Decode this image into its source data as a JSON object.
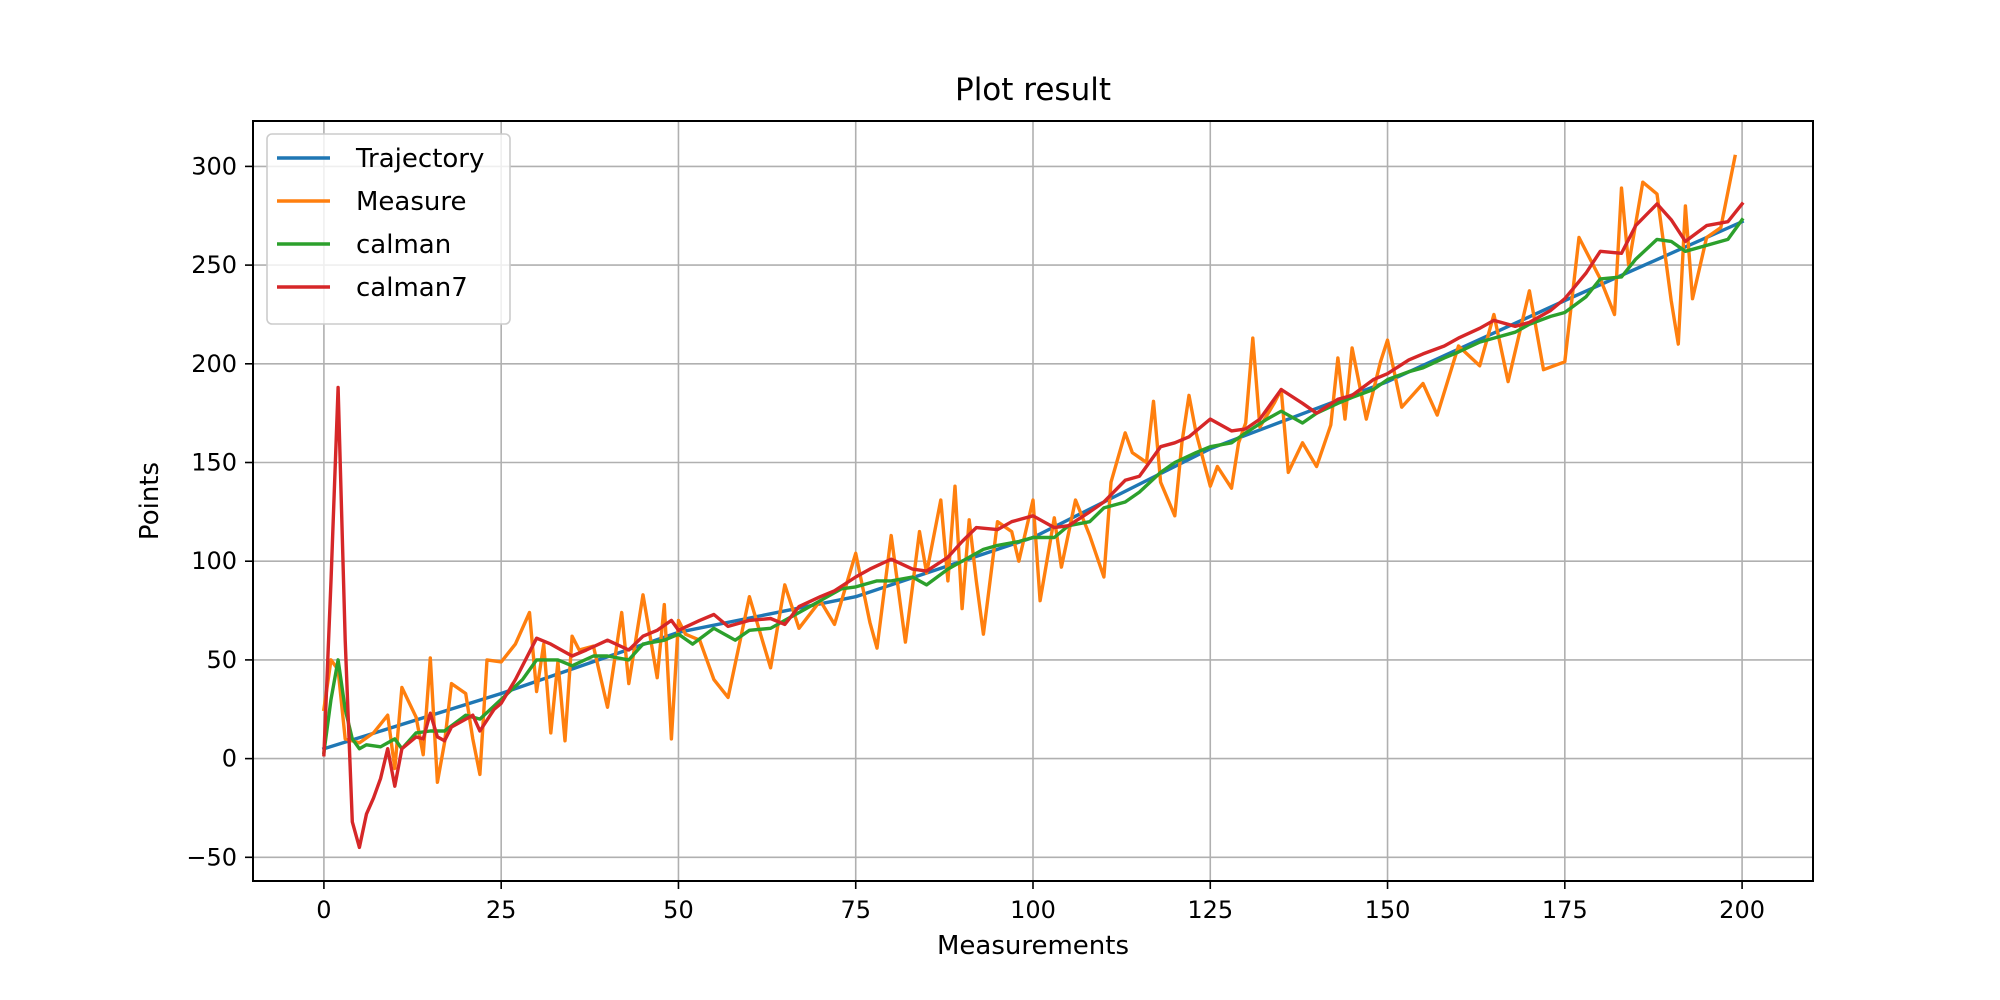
{
  "chart_data": {
    "type": "line",
    "title": "Plot result",
    "xlabel": "Measurements",
    "ylabel": "Points",
    "xlim": [
      -10,
      210
    ],
    "ylim": [
      -62,
      323
    ],
    "xticks": [
      0,
      25,
      50,
      75,
      100,
      125,
      150,
      175,
      200
    ],
    "yticks": [
      -50,
      0,
      50,
      100,
      150,
      200,
      250,
      300
    ],
    "xtick_labels": [
      "0",
      "25",
      "50",
      "75",
      "100",
      "125",
      "150",
      "175",
      "200"
    ],
    "ytick_labels": [
      "−50",
      "0",
      "50",
      "100",
      "150",
      "200",
      "250",
      "300"
    ],
    "grid": true,
    "legend_position": "top-left",
    "series": [
      {
        "name": "Trajectory",
        "color": "#1f77b4",
        "x": [
          0,
          25,
          50,
          75,
          100,
          125,
          150,
          175,
          200
        ],
        "y": [
          5,
          33,
          64,
          82,
          112,
          157,
          191,
          232,
          272
        ]
      },
      {
        "name": "Measure",
        "color": "#ff7f0e",
        "x": [
          0,
          1,
          2,
          3,
          5,
          7,
          9,
          10,
          11,
          13,
          14,
          15,
          16,
          17,
          18,
          20,
          21,
          22,
          23,
          25,
          27,
          29,
          30,
          31,
          32,
          33,
          34,
          35,
          36,
          38,
          40,
          42,
          43,
          45,
          47,
          48,
          49,
          50,
          51,
          53,
          55,
          57,
          60,
          62,
          63,
          65,
          67,
          70,
          72,
          75,
          77,
          78,
          80,
          82,
          84,
          85,
          87,
          88,
          89,
          90,
          91,
          92,
          93,
          95,
          97,
          98,
          100,
          101,
          103,
          104,
          106,
          108,
          110,
          111,
          113,
          114,
          116,
          117,
          118,
          120,
          121,
          122,
          123,
          125,
          126,
          128,
          129,
          130,
          131,
          132,
          134,
          135,
          136,
          138,
          140,
          142,
          143,
          144,
          145,
          147,
          149,
          150,
          152,
          155,
          157,
          160,
          163,
          165,
          167,
          170,
          172,
          175,
          177,
          180,
          182,
          183,
          184,
          186,
          188,
          190,
          191,
          192,
          193,
          195,
          197,
          199
        ],
        "y": [
          25,
          50,
          45,
          10,
          8,
          13,
          22,
          -5,
          36,
          21,
          2,
          51,
          -12,
          8,
          38,
          33,
          10,
          -8,
          50,
          49,
          58,
          74,
          34,
          58,
          13,
          49,
          9,
          62,
          55,
          57,
          26,
          74,
          38,
          83,
          41,
          78,
          10,
          70,
          63,
          60,
          40,
          31,
          82,
          58,
          46,
          88,
          66,
          80,
          68,
          104,
          69,
          56,
          113,
          59,
          115,
          94,
          131,
          90,
          138,
          76,
          121,
          90,
          63,
          120,
          115,
          100,
          131,
          80,
          122,
          97,
          131,
          113,
          92,
          140,
          165,
          155,
          150,
          181,
          140,
          123,
          160,
          184,
          165,
          138,
          148,
          137,
          160,
          170,
          213,
          168,
          180,
          187,
          145,
          160,
          148,
          169,
          203,
          172,
          208,
          172,
          201,
          212,
          178,
          190,
          174,
          209,
          199,
          225,
          191,
          237,
          197,
          201,
          264,
          243,
          225,
          289,
          250,
          292,
          286,
          232,
          210,
          280,
          233,
          264,
          269,
          305
        ]
      },
      {
        "name": "calman",
        "color": "#2ca02c",
        "x": [
          0,
          1,
          2,
          3,
          4,
          5,
          6,
          8,
          10,
          11,
          13,
          15,
          17,
          20,
          22,
          25,
          28,
          30,
          33,
          35,
          38,
          40,
          43,
          45,
          48,
          50,
          52,
          55,
          58,
          60,
          63,
          65,
          68,
          70,
          73,
          75,
          78,
          80,
          83,
          85,
          88,
          90,
          93,
          95,
          98,
          100,
          103,
          105,
          108,
          110,
          113,
          115,
          118,
          120,
          123,
          125,
          128,
          130,
          133,
          135,
          138,
          140,
          143,
          145,
          148,
          150,
          153,
          155,
          158,
          160,
          163,
          165,
          168,
          170,
          173,
          175,
          178,
          180,
          183,
          185,
          188,
          190,
          192,
          195,
          198,
          200
        ],
        "y": [
          3,
          30,
          50,
          25,
          10,
          5,
          7,
          6,
          10,
          5,
          13,
          14,
          14,
          22,
          20,
          30,
          40,
          50,
          50,
          47,
          52,
          52,
          50,
          58,
          60,
          63,
          58,
          66,
          60,
          65,
          66,
          70,
          76,
          80,
          86,
          87,
          90,
          90,
          92,
          88,
          96,
          100,
          106,
          108,
          110,
          112,
          112,
          118,
          120,
          127,
          130,
          135,
          145,
          150,
          155,
          158,
          160,
          165,
          172,
          176,
          170,
          175,
          180,
          183,
          187,
          192,
          196,
          198,
          203,
          206,
          211,
          213,
          216,
          220,
          224,
          226,
          234,
          243,
          244,
          253,
          263,
          262,
          257,
          260,
          263,
          273
        ]
      },
      {
        "name": "calman7",
        "color": "#d62728",
        "x": [
          0,
          1,
          2,
          3,
          4,
          5,
          6,
          7,
          8,
          9,
          10,
          11,
          12,
          13,
          14,
          15,
          16,
          17,
          18,
          20,
          21,
          22,
          24,
          25,
          27,
          30,
          32,
          33,
          35,
          37,
          40,
          43,
          45,
          47,
          49,
          50,
          53,
          55,
          57,
          60,
          63,
          65,
          67,
          70,
          72,
          75,
          77,
          80,
          83,
          85,
          88,
          90,
          92,
          95,
          97,
          100,
          103,
          105,
          108,
          110,
          113,
          115,
          118,
          120,
          122,
          125,
          128,
          130,
          132,
          135,
          138,
          140,
          143,
          145,
          148,
          150,
          153,
          155,
          158,
          160,
          163,
          165,
          168,
          170,
          173,
          175,
          178,
          180,
          183,
          185,
          188,
          190,
          192,
          195,
          198,
          200
        ],
        "y": [
          2,
          90,
          188,
          60,
          -32,
          -45,
          -28,
          -20,
          -10,
          5,
          -14,
          5,
          8,
          11,
          10,
          23,
          11,
          9,
          16,
          20,
          22,
          14,
          25,
          28,
          40,
          61,
          58,
          56,
          52,
          55,
          60,
          55,
          62,
          65,
          70,
          65,
          70,
          73,
          67,
          70,
          71,
          68,
          77,
          82,
          85,
          92,
          96,
          101,
          96,
          95,
          102,
          110,
          117,
          116,
          120,
          123,
          117,
          118,
          125,
          130,
          141,
          143,
          158,
          160,
          163,
          172,
          166,
          167,
          172,
          187,
          180,
          175,
          182,
          184,
          192,
          195,
          202,
          205,
          209,
          213,
          218,
          222,
          219,
          221,
          227,
          233,
          246,
          257,
          256,
          270,
          281,
          273,
          262,
          270,
          272,
          281
        ]
      }
    ]
  }
}
